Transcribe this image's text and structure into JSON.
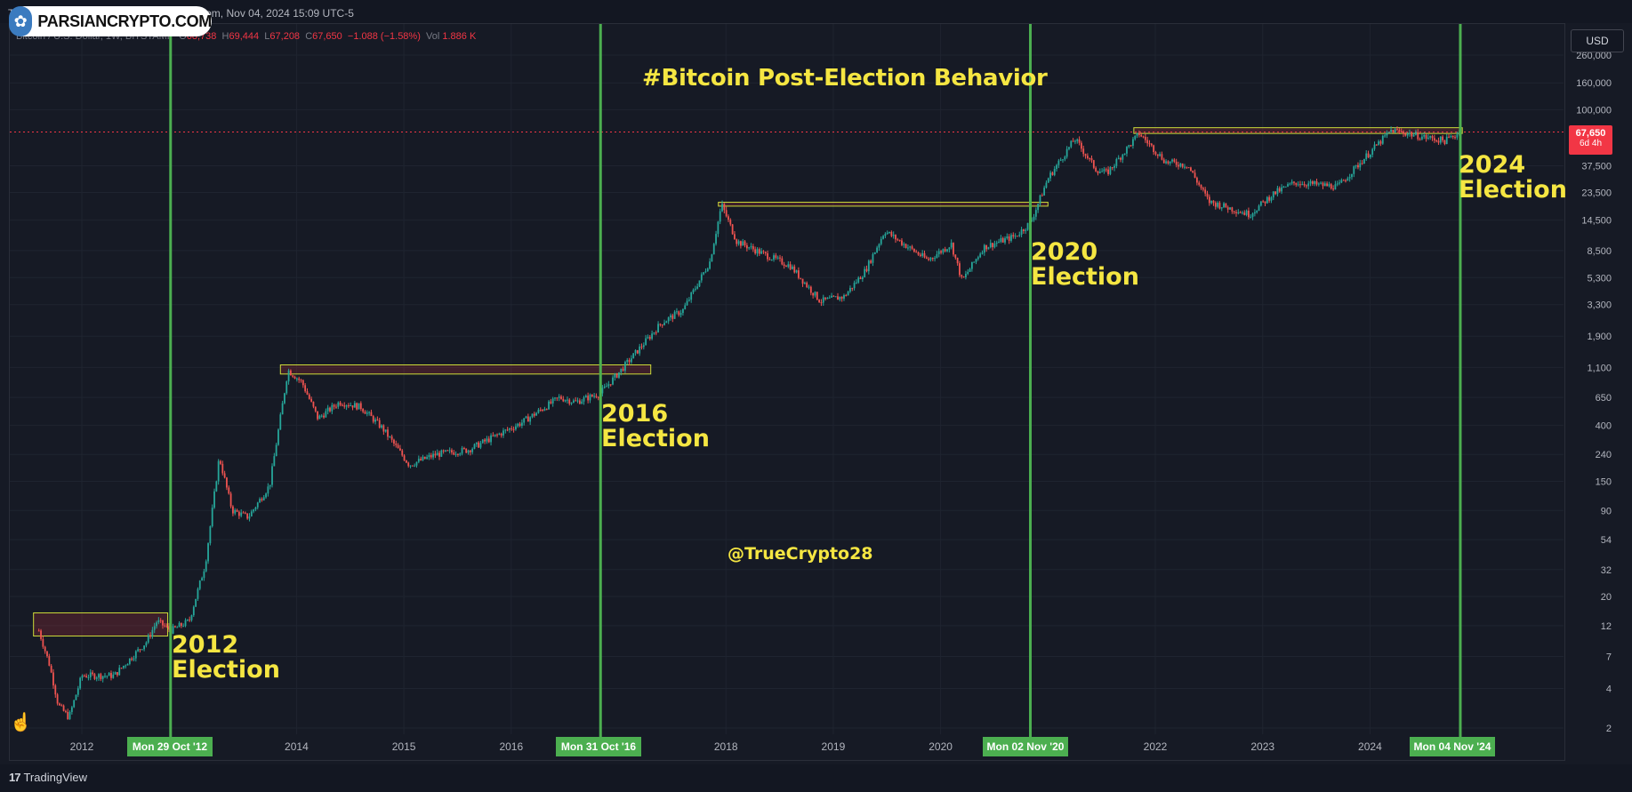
{
  "topbar": {
    "title": "TrueCrypto28 published on TradingView.com, Nov 04, 2024 15:09 UTC-5"
  },
  "logo": {
    "text": "PARSIANCRYPTO.COM",
    "icon": "parsiancrypto-logo-icon"
  },
  "legend": {
    "symbol": "Bitcoin / U.S. Dollar, 1W, BITSTAMP",
    "o_label": "O",
    "o_value": "68,738",
    "h_label": "H",
    "h_value": "69,444",
    "l_label": "L",
    "l_value": "67,208",
    "c_label": "C",
    "c_value": "67,650",
    "change": "−1.088 (−1.58%)",
    "vol_label": "Vol",
    "vol_value": "1.886 K"
  },
  "currency_button": "USD",
  "price_tag": {
    "price": "67,650",
    "countdown": "6d 4h"
  },
  "footer": {
    "brand": "TradingView"
  },
  "annotations": {
    "title": "#Bitcoin Post-Election Behavior",
    "handle": "@TrueCrypto28",
    "election_2012": {
      "year": "2012",
      "word": "Election"
    },
    "election_2016": {
      "year": "2016",
      "word": "Election"
    },
    "election_2020": {
      "year": "2020",
      "word": "Election"
    },
    "election_2024": {
      "year": "2024",
      "word": "Election"
    }
  },
  "date_tags": {
    "d2012": "Mon 29 Oct '12",
    "d2016": "Mon 31 Oct '16",
    "d2020": "Mon 02 Nov '20",
    "d2024": "Mon 04 Nov '24"
  },
  "colors": {
    "background": "#161a25",
    "up": "#26a69a",
    "down": "#ef5350",
    "election_line": "#4caf50",
    "annotation": "#f5e642",
    "price_line": "#f23645"
  },
  "chart_data": {
    "type": "candlestick",
    "scale": "log",
    "x_axis_labels": [
      "2012",
      "2014",
      "2015",
      "2016",
      "2018",
      "2019",
      "2020",
      "2022",
      "2023",
      "2024"
    ],
    "y_axis_labels": [
      "2",
      "4",
      "7",
      "12",
      "20",
      "32",
      "54",
      "90",
      "150",
      "240",
      "400",
      "650",
      "1,100",
      "1,900",
      "3,300",
      "5,300",
      "8,500",
      "14,500",
      "23,500",
      "37,500",
      "100,000",
      "160,000",
      "260,000"
    ],
    "last_price": 67650,
    "election_dates": [
      "2012-10-29",
      "2016-10-31",
      "2020-11-02",
      "2024-11-04"
    ],
    "price_path": [
      {
        "t": 2011.6,
        "p": 11
      },
      {
        "t": 2011.7,
        "p": 6
      },
      {
        "t": 2011.78,
        "p": 3
      },
      {
        "t": 2011.88,
        "p": 2.4
      },
      {
        "t": 2012.0,
        "p": 5
      },
      {
        "t": 2012.3,
        "p": 5
      },
      {
        "t": 2012.6,
        "p": 9
      },
      {
        "t": 2012.7,
        "p": 13
      },
      {
        "t": 2012.83,
        "p": 11
      },
      {
        "t": 2013.0,
        "p": 13
      },
      {
        "t": 2013.15,
        "p": 35
      },
      {
        "t": 2013.28,
        "p": 230
      },
      {
        "t": 2013.4,
        "p": 90
      },
      {
        "t": 2013.55,
        "p": 80
      },
      {
        "t": 2013.75,
        "p": 140
      },
      {
        "t": 2013.92,
        "p": 1050
      },
      {
        "t": 2014.05,
        "p": 850
      },
      {
        "t": 2014.2,
        "p": 450
      },
      {
        "t": 2014.4,
        "p": 600
      },
      {
        "t": 2014.6,
        "p": 550
      },
      {
        "t": 2014.8,
        "p": 380
      },
      {
        "t": 2015.05,
        "p": 200
      },
      {
        "t": 2015.3,
        "p": 240
      },
      {
        "t": 2015.6,
        "p": 260
      },
      {
        "t": 2015.85,
        "p": 330
      },
      {
        "t": 2016.1,
        "p": 420
      },
      {
        "t": 2016.45,
        "p": 650
      },
      {
        "t": 2016.6,
        "p": 600
      },
      {
        "t": 2016.83,
        "p": 700
      },
      {
        "t": 2017.0,
        "p": 1000
      },
      {
        "t": 2017.4,
        "p": 2400
      },
      {
        "t": 2017.6,
        "p": 3000
      },
      {
        "t": 2017.85,
        "p": 7000
      },
      {
        "t": 2017.96,
        "p": 19000
      },
      {
        "t": 2018.1,
        "p": 10000
      },
      {
        "t": 2018.35,
        "p": 8000
      },
      {
        "t": 2018.6,
        "p": 6500
      },
      {
        "t": 2018.88,
        "p": 3500
      },
      {
        "t": 2019.1,
        "p": 3800
      },
      {
        "t": 2019.3,
        "p": 6000
      },
      {
        "t": 2019.48,
        "p": 12000
      },
      {
        "t": 2019.7,
        "p": 9000
      },
      {
        "t": 2019.88,
        "p": 7200
      },
      {
        "t": 2020.1,
        "p": 9500
      },
      {
        "t": 2020.2,
        "p": 5000
      },
      {
        "t": 2020.4,
        "p": 9000
      },
      {
        "t": 2020.7,
        "p": 11000
      },
      {
        "t": 2020.84,
        "p": 14000
      },
      {
        "t": 2021.0,
        "p": 30000
      },
      {
        "t": 2021.25,
        "p": 60000
      },
      {
        "t": 2021.45,
        "p": 35000
      },
      {
        "t": 2021.55,
        "p": 33000
      },
      {
        "t": 2021.85,
        "p": 66000
      },
      {
        "t": 2022.1,
        "p": 40000
      },
      {
        "t": 2022.3,
        "p": 38000
      },
      {
        "t": 2022.5,
        "p": 20000
      },
      {
        "t": 2022.88,
        "p": 16000
      },
      {
        "t": 2023.1,
        "p": 23000
      },
      {
        "t": 2023.3,
        "p": 28000
      },
      {
        "t": 2023.7,
        "p": 26000
      },
      {
        "t": 2023.95,
        "p": 43000
      },
      {
        "t": 2024.2,
        "p": 70000
      },
      {
        "t": 2024.5,
        "p": 62000
      },
      {
        "t": 2024.7,
        "p": 58000
      },
      {
        "t": 2024.84,
        "p": 67650
      }
    ],
    "resistance_boxes": [
      {
        "t0": 2011.55,
        "t1": 2012.8,
        "p_low": 10,
        "p_high": 15
      },
      {
        "t0": 2013.85,
        "t1": 2017.3,
        "p_low": 980,
        "p_high": 1150
      },
      {
        "t0": 2017.93,
        "t1": 2021.0,
        "p_low": 18500,
        "p_high": 19800
      },
      {
        "t0": 2021.8,
        "t1": 2024.86,
        "p_low": 66000,
        "p_high": 73000
      }
    ]
  }
}
